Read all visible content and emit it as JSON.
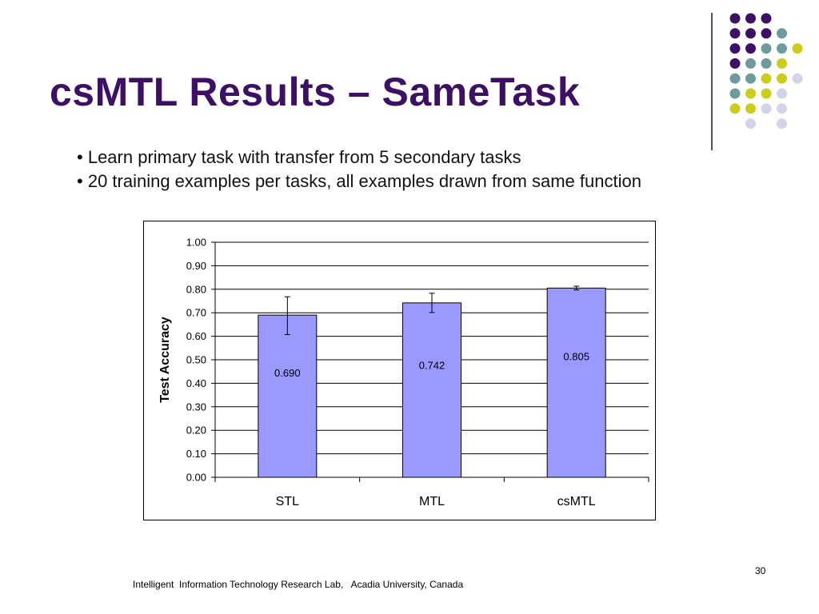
{
  "slide": {
    "title": "csMTL Results – SameTask",
    "bullets": [
      "Learn primary task with transfer from 5 secondary tasks",
      "20 training examples per tasks, all examples drawn from same function"
    ],
    "footer": "Intelligent  Information Technology Research Lab,   Acadia University, Canada",
    "page_number": "30"
  },
  "colors": {
    "title": "#3d1066",
    "bar_fill": "#9999ff",
    "dot_purple": "#3d1066",
    "dot_teal": "#6e9b9b",
    "dot_yellow": "#cccc1a",
    "dot_lavender": "#d4d4e8"
  },
  "decoration": {
    "dot_grid_rows": [
      [
        "purple",
        "purple",
        "purple",
        "none"
      ],
      [
        "purple",
        "purple",
        "purple",
        "teal"
      ],
      [
        "purple",
        "purple",
        "teal",
        "teal",
        "yellow"
      ],
      [
        "purple",
        "teal",
        "teal",
        "yellow"
      ],
      [
        "teal",
        "teal",
        "yellow",
        "yellow",
        "lavender"
      ],
      [
        "teal",
        "yellow",
        "yellow",
        "lavender"
      ],
      [
        "yellow",
        "yellow",
        "lavender",
        "lavender"
      ],
      [
        "none",
        "lavender",
        "none",
        "lavender"
      ]
    ]
  },
  "chart_data": {
    "type": "bar",
    "categories": [
      "STL",
      "MTL",
      "csMTL"
    ],
    "values": [
      0.69,
      0.742,
      0.805
    ],
    "value_labels": [
      "0.690",
      "0.742",
      "0.805"
    ],
    "error_bars": [
      [
        0.607,
        0.768
      ],
      [
        0.701,
        0.783
      ],
      [
        0.797,
        0.813
      ]
    ],
    "title": "",
    "xlabel": "",
    "ylabel": "Test Accuracy",
    "ylim": [
      0,
      1.0
    ],
    "yticks": [
      "0.00",
      "0.10",
      "0.20",
      "0.30",
      "0.40",
      "0.50",
      "0.60",
      "0.70",
      "0.80",
      "0.90",
      "1.00"
    ],
    "grid": true,
    "legend": "none"
  }
}
